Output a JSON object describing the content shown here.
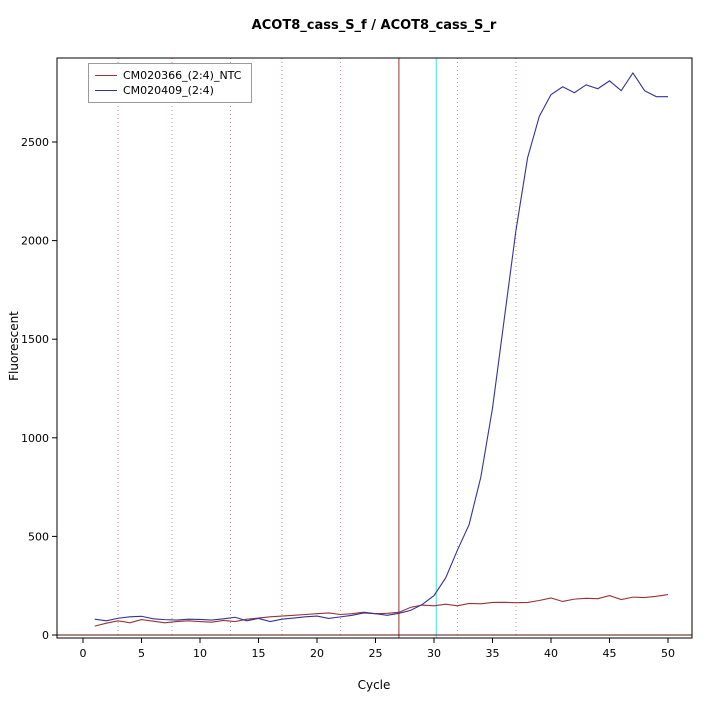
{
  "chart_data": {
    "type": "line",
    "title": "ACOT8_cass_S_f / ACOT8_cass_S_r",
    "xlabel": "Cycle",
    "ylabel": "Fluorescent",
    "xlim": [
      -2,
      52
    ],
    "ylim": [
      -60,
      2930
    ],
    "xticks": [
      0,
      5,
      10,
      15,
      20,
      25,
      30,
      35,
      40,
      45,
      50
    ],
    "yticks": [
      0,
      500,
      1000,
      1500,
      2000,
      2500
    ],
    "grid": "dotted-vertical",
    "legend_position": "top-left",
    "x": [
      1,
      2,
      3,
      4,
      5,
      6,
      7,
      8,
      9,
      10,
      11,
      12,
      13,
      14,
      15,
      16,
      17,
      18,
      19,
      20,
      21,
      22,
      23,
      24,
      25,
      26,
      27,
      28,
      29,
      30,
      31,
      32,
      33,
      34,
      35,
      36,
      37,
      38,
      39,
      40,
      41,
      42,
      43,
      44,
      45,
      46,
      47,
      48,
      49,
      50
    ],
    "series": [
      {
        "name": "CM020366_(2:4)_NTC",
        "color": "#993333",
        "values": [
          45,
          60,
          72,
          62,
          78,
          70,
          62,
          68,
          72,
          68,
          65,
          74,
          68,
          80,
          86,
          92,
          96,
          100,
          104,
          108,
          112,
          104,
          108,
          116,
          108,
          110,
          115,
          140,
          152,
          148,
          156,
          148,
          160,
          158,
          165,
          166,
          164,
          165,
          175,
          188,
          170,
          182,
          186,
          184,
          200,
          180,
          192,
          190,
          196,
          205
        ]
      },
      {
        "name": "CM020409_(2:4)",
        "color": "#333399",
        "values": [
          80,
          72,
          85,
          92,
          95,
          82,
          78,
          76,
          80,
          79,
          76,
          82,
          90,
          72,
          84,
          68,
          80,
          86,
          92,
          96,
          84,
          92,
          100,
          112,
          108,
          100,
          110,
          125,
          155,
          200,
          290,
          430,
          560,
          800,
          1150,
          1600,
          2050,
          2420,
          2630,
          2740,
          2780,
          2750,
          2790,
          2770,
          2810,
          2760,
          2850,
          2760,
          2730,
          2730
        ]
      }
    ],
    "vlines": [
      {
        "x": 27,
        "color": "#993333",
        "width": 1,
        "name": "threshold-cycle-line-red"
      },
      {
        "x": 30.2,
        "color": "#77e8e8",
        "width": 1.5,
        "name": "threshold-cycle-line-cyan"
      }
    ],
    "dotted_vlines": {
      "x": [
        3,
        7.6,
        12.6,
        17,
        22,
        32,
        37
      ],
      "color": "#cc8888"
    },
    "hlines": [
      {
        "y": 0,
        "color": "#551111",
        "name": "zero-baseline-line"
      }
    ]
  }
}
